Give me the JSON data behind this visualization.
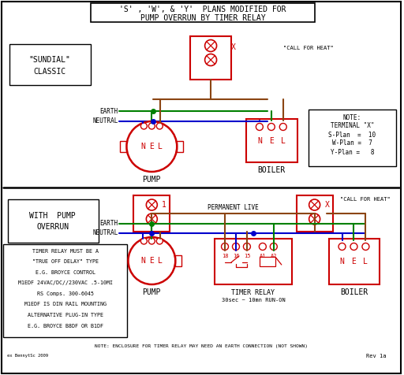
{
  "title_line1": "'S' , 'W', & 'Y'  PLANS MODIFIED FOR",
  "title_line2": "PUMP OVERRUN BY TIMER RELAY",
  "bg_color": "#ffffff",
  "red": "#cc0000",
  "green": "#008000",
  "blue": "#0000cc",
  "brown": "#8B4513",
  "black": "#000000",
  "timer_note_lines": [
    "TIMER RELAY MUST BE A",
    "\"TRUE OFF DELAY\" TYPE",
    "E.G. BROYCE CONTROL",
    "M1EDF 24VAC/DC//230VAC .5-10MI",
    "RS Comps. 300-6045",
    "M1EDF IS DIN RAIL MOUNTING",
    "ALTERNATIVE PLUG-IN TYPE",
    "E.G. BROYCE B8DF OR B1DF"
  ],
  "bottom_note": "NOTE: ENCLOSURE FOR TIMER RELAY MAY NEED AN EARTH CONNECTION (NOT SHOWN)",
  "rev_note": "Rev 1a",
  "credit": "ex BennytSc 2009"
}
